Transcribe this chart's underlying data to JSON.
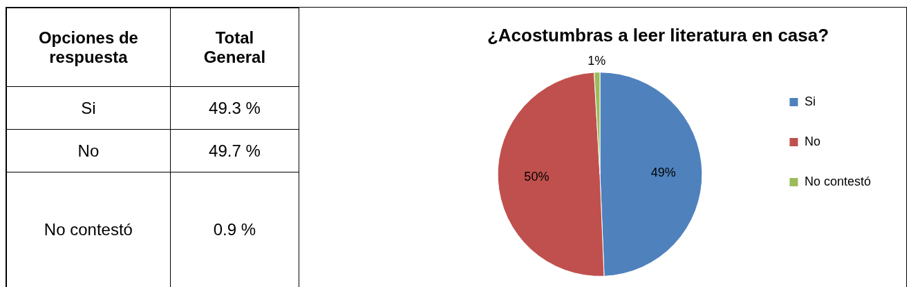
{
  "chart_data": {
    "type": "pie",
    "title": "¿Acostumbras a leer literatura en casa?",
    "categories": [
      "Si",
      "No",
      "No contestó"
    ],
    "values": [
      49.3,
      49.7,
      0.9
    ],
    "colors": [
      "#4f81bd",
      "#c0504d",
      "#9bbb59"
    ],
    "value_labels": [
      "49%",
      "50%",
      "1%"
    ],
    "legend": "right",
    "annotations": [
      "Opciones de respuesta",
      "Total General",
      "49.3 %",
      "49.7 %",
      "0.9 %"
    ]
  }
}
